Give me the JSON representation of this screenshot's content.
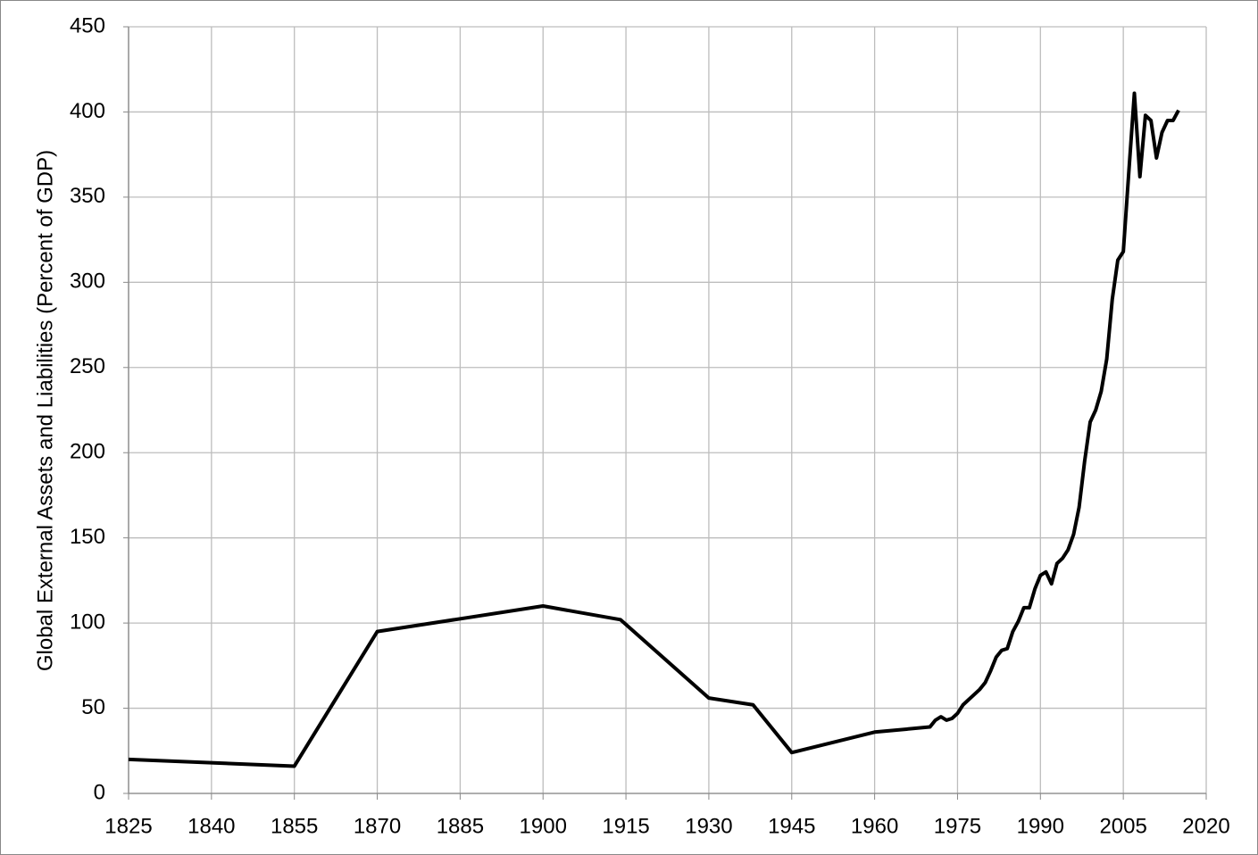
{
  "chart_data": {
    "type": "line",
    "y_label": "Global External Assets and Liabilities (Percent of GDP)",
    "x": [
      1825,
      1855,
      1870,
      1900,
      1914,
      1930,
      1938,
      1945,
      1960,
      1970,
      1971,
      1972,
      1973,
      1974,
      1975,
      1976,
      1977,
      1978,
      1979,
      1980,
      1981,
      1982,
      1983,
      1984,
      1985,
      1986,
      1987,
      1988,
      1989,
      1990,
      1991,
      1992,
      1993,
      1994,
      1995,
      1996,
      1997,
      1998,
      1999,
      2000,
      2001,
      2002,
      2003,
      2004,
      2005,
      2006,
      2007,
      2008,
      2009,
      2010,
      2011,
      2012,
      2013,
      2014,
      2015
    ],
    "series": [
      {
        "color": "#000000",
        "values": [
          20,
          16,
          95,
          110,
          102,
          56,
          52,
          24,
          36,
          39,
          43,
          45,
          43,
          44,
          47,
          52,
          55,
          58,
          61,
          65,
          72,
          80,
          84,
          85,
          95,
          101,
          109,
          109,
          120,
          128,
          130,
          123,
          135,
          138,
          143,
          152,
          168,
          195,
          218,
          225,
          236,
          255,
          290,
          313,
          318,
          365,
          411,
          362,
          398,
          395,
          373,
          388,
          395,
          395,
          401
        ]
      }
    ],
    "xlim": [
      1825,
      2020
    ],
    "xticks": [
      1825,
      1840,
      1855,
      1870,
      1885,
      1900,
      1915,
      1930,
      1945,
      1960,
      1975,
      1990,
      2005,
      2020
    ],
    "ylim": [
      0,
      450
    ],
    "yticks": [
      0,
      50,
      100,
      150,
      200,
      250,
      300,
      350,
      400,
      450
    ],
    "grid": true
  }
}
